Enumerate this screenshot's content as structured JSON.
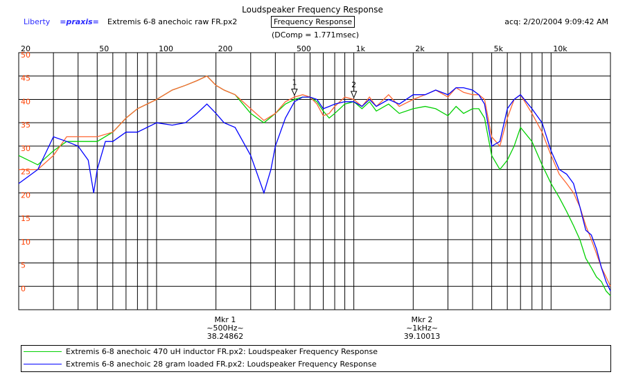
{
  "header": {
    "title": "Loudspeaker Frequency Response",
    "brand_liberty": "Liberty",
    "brand_praxis": "=praxis=",
    "source_file": "Extremis 6-8 anechoic raw FR.px2",
    "tab_label": "Frequency Response",
    "acq_timestamp": "acq: 2/20/2004 9:09:42 AM",
    "dcomp": "(DComp = 1.771msec)"
  },
  "markers": [
    {
      "id": "1",
      "label": "Mkr 1",
      "freq_label": "~500Hz~",
      "value": "38.24862",
      "freq": 500
    },
    {
      "id": "2",
      "label": "Mkr 2",
      "freq_label": "~1kHz~",
      "value": "39.10013",
      "freq": 1000
    }
  ],
  "legend": [
    {
      "text": "Extremis 6-8 anechoic 470 uH inductor FR.px2:  Loudspeaker Frequency Response",
      "color": "#00d000"
    },
    {
      "text": "Extremis 6-8 anechoic 28 gram loaded FR.px2:  Loudspeaker Frequency Response",
      "color": "#0000ff"
    }
  ],
  "chart_data": {
    "type": "line",
    "title": "Loudspeaker Frequency Response",
    "x_scale": "log",
    "xlim": [
      20,
      20000
    ],
    "ylim": [
      -5,
      50
    ],
    "x_tick_labels": [
      {
        "v": 20,
        "t": "20"
      },
      {
        "v": 50,
        "t": "50"
      },
      {
        "v": 100,
        "t": "100"
      },
      {
        "v": 200,
        "t": "200"
      },
      {
        "v": 500,
        "t": "500"
      },
      {
        "v": 1000,
        "t": "1k"
      },
      {
        "v": 2000,
        "t": "2k"
      },
      {
        "v": 5000,
        "t": "5k"
      },
      {
        "v": 10000,
        "t": "10k"
      }
    ],
    "y_ticks": [
      50,
      45,
      40,
      35,
      30,
      25,
      20,
      15,
      10,
      5,
      0
    ],
    "grid": true,
    "legend_position": "bottom",
    "series": [
      {
        "name": "Extremis 6-8 anechoic 470 uH inductor FR.px2",
        "color": "#00d000",
        "x": [
          20,
          25,
          30,
          35,
          40,
          50,
          60,
          70,
          80,
          100,
          120,
          140,
          160,
          180,
          200,
          220,
          250,
          300,
          350,
          400,
          450,
          500,
          550,
          600,
          650,
          700,
          750,
          800,
          900,
          1000,
          1100,
          1200,
          1300,
          1500,
          1700,
          2000,
          2300,
          2600,
          3000,
          3300,
          3600,
          4000,
          4300,
          4600,
          5000,
          5500,
          6000,
          6500,
          7000,
          8000,
          9000,
          10000,
          11000,
          12000,
          13000,
          14000,
          15000,
          16000,
          17000,
          18000,
          19000,
          20000
        ],
        "y": [
          28,
          26,
          29,
          31,
          31,
          31,
          33,
          36,
          38,
          40,
          42,
          43,
          44,
          45,
          43,
          42,
          41,
          37,
          35,
          37,
          39,
          40,
          40.5,
          40.5,
          39.5,
          37.5,
          36,
          37,
          39,
          39.5,
          38,
          39.5,
          37.5,
          39,
          37,
          38,
          38.5,
          38,
          36.5,
          38.5,
          37,
          38,
          38,
          36,
          28,
          25,
          27,
          30,
          34,
          31,
          26,
          22,
          19,
          16,
          13,
          10,
          6,
          4,
          2,
          1,
          -1,
          -2
        ]
      },
      {
        "name": "",
        "color": "#ff6633",
        "x": [
          20,
          25,
          30,
          35,
          40,
          50,
          60,
          70,
          80,
          100,
          120,
          140,
          160,
          180,
          200,
          220,
          250,
          300,
          350,
          400,
          450,
          500,
          550,
          600,
          650,
          700,
          750,
          800,
          900,
          1000,
          1100,
          1200,
          1300,
          1500,
          1700,
          2000,
          2300,
          2600,
          3000,
          3300,
          3600,
          4000,
          4300,
          4600,
          5000,
          5500,
          6000,
          6500,
          7000,
          8000,
          9000,
          10000,
          11000,
          12000,
          13000,
          14000,
          15000,
          16000,
          17000,
          18000,
          19000,
          20000
        ],
        "y": [
          25,
          25,
          28,
          32,
          32,
          32,
          33,
          36,
          38,
          40,
          42,
          43,
          44,
          45,
          43,
          42,
          41,
          38,
          35.5,
          37,
          39.5,
          40.5,
          41,
          40.5,
          39,
          36.5,
          37,
          38.5,
          40.5,
          40,
          38.5,
          40.5,
          38.5,
          41,
          38.5,
          40,
          41,
          42,
          40.5,
          42.5,
          41.5,
          41,
          41,
          40,
          32,
          30,
          36,
          40,
          41,
          37,
          33,
          28,
          24,
          22,
          20,
          17,
          13,
          10,
          7,
          4,
          2,
          0
        ]
      },
      {
        "name": "Extremis 6-8 anechoic 28 gram loaded FR.px2",
        "color": "#0000ff",
        "x": [
          20,
          25,
          30,
          35,
          40,
          45,
          48,
          50,
          55,
          60,
          70,
          80,
          100,
          120,
          140,
          160,
          180,
          200,
          220,
          250,
          300,
          350,
          380,
          400,
          450,
          500,
          550,
          600,
          650,
          700,
          750,
          800,
          900,
          1000,
          1100,
          1200,
          1300,
          1500,
          1700,
          2000,
          2300,
          2600,
          3000,
          3300,
          3600,
          4000,
          4300,
          4600,
          5000,
          5500,
          6000,
          6500,
          7000,
          8000,
          9000,
          10000,
          11000,
          12000,
          13000,
          14000,
          15000,
          16000,
          17000,
          18000,
          19000,
          20000
        ],
        "y": [
          22,
          25,
          32,
          31,
          30,
          27,
          20,
          25,
          31,
          31,
          33,
          33,
          35,
          34.5,
          35,
          37,
          39,
          37,
          35,
          34,
          28,
          20,
          25,
          30,
          36,
          39.5,
          40.5,
          40.5,
          40,
          38,
          38.5,
          39,
          39.5,
          39.5,
          38.5,
          40,
          38.5,
          40,
          39,
          41,
          41,
          42,
          41,
          42.5,
          42.5,
          42,
          41,
          39,
          30,
          31,
          38,
          40,
          41,
          38,
          35,
          29,
          25,
          24,
          22,
          17,
          12,
          11,
          8,
          4,
          1,
          -1
        ]
      }
    ]
  }
}
